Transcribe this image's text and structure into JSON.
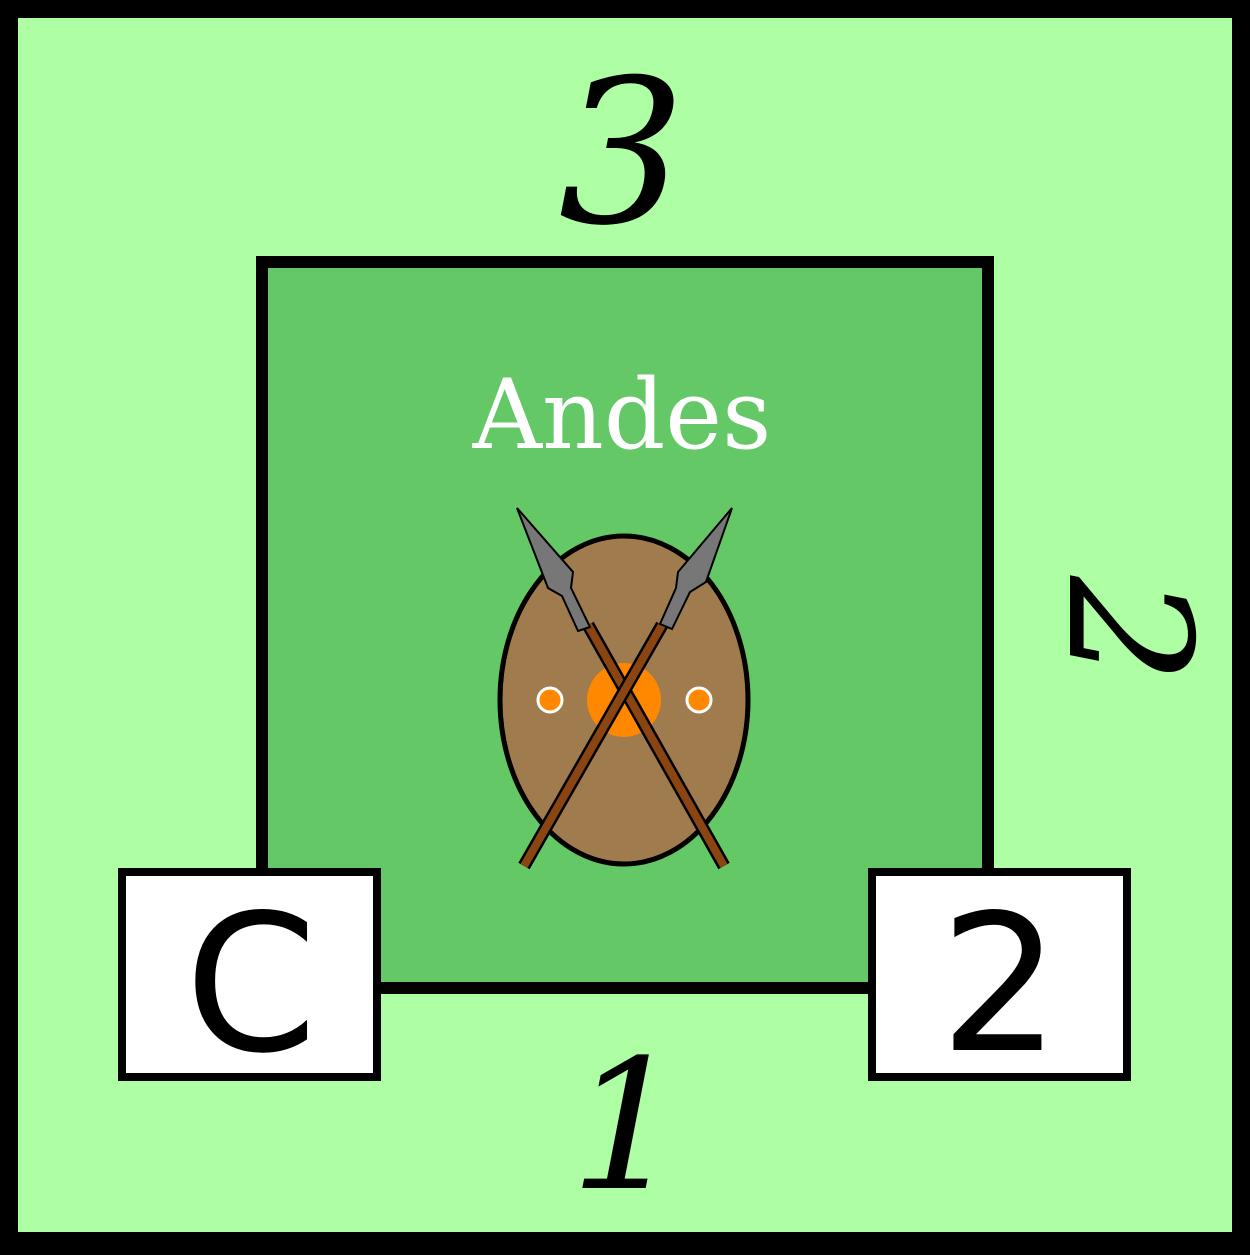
{
  "card": {
    "region_name": "Andes",
    "edge_numbers": {
      "top": "3",
      "right": "2",
      "bottom": "1"
    },
    "badges": {
      "left": "C",
      "right": "2"
    },
    "emblem": "shield-and-crossed-spears-icon"
  },
  "colors": {
    "outer_background": "#aeffa4",
    "inner_square": "#64c867",
    "border": "#000000",
    "badge_fill": "#ffffff",
    "region_text": "#ffffff",
    "shield": "#a07b4e",
    "shield_boss": "#ff8800",
    "spear_shaft": "#8b4513",
    "spear_head": "#777777"
  }
}
